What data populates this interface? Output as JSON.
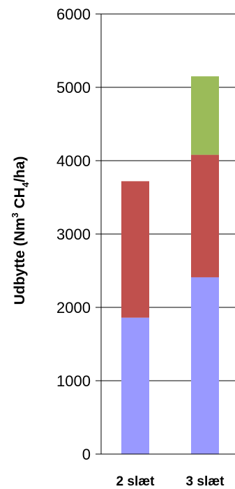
{
  "chart_data": {
    "type": "bar",
    "stacked": true,
    "categories": [
      "2 slæt",
      "3 slæt"
    ],
    "series": [
      {
        "values": [
          1860,
          2410
        ],
        "color": "#9999ff"
      },
      {
        "values": [
          1860,
          1670
        ],
        "color": "#c0504d"
      },
      {
        "values": [
          0,
          1070
        ],
        "color": "#9bbb59"
      }
    ],
    "ylabel": {
      "main": "Udbytte (Nm",
      "sup": "3",
      "mid": " CH",
      "sub": "4",
      "end": "/ha)"
    },
    "ylim": [
      0,
      6000
    ],
    "yticks": [
      "0",
      "1000",
      "2000",
      "3000",
      "4000",
      "5000",
      "6000"
    ],
    "grid": true,
    "legend": "none"
  }
}
